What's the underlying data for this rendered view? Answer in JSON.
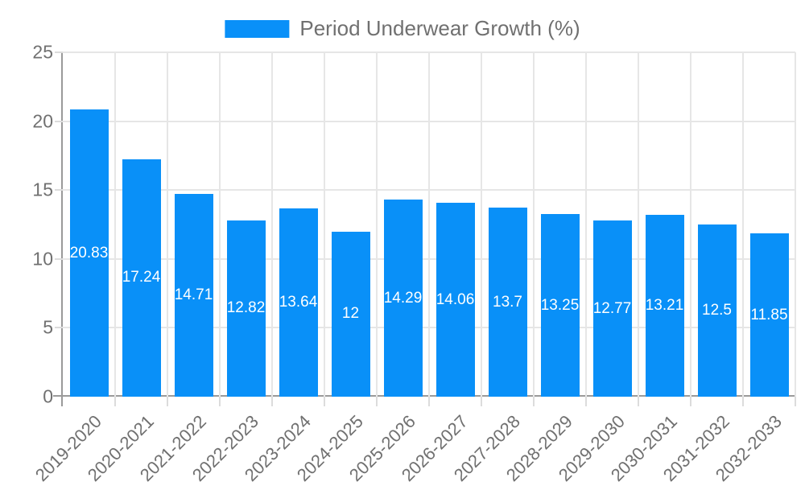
{
  "chart_data": {
    "type": "bar",
    "title": "",
    "legend_label": "Period Underwear Growth (%)",
    "legend_position": "top",
    "categories": [
      "2019-2020",
      "2020-2021",
      "2021-2022",
      "2022-2023",
      "2023-2024",
      "2024-2025",
      "2025-2026",
      "2026-2027",
      "2027-2028",
      "2028-2029",
      "2029-2030",
      "2030-2031",
      "2031-2032",
      "2032-2033"
    ],
    "values": [
      20.83,
      17.24,
      14.71,
      12.82,
      13.64,
      12,
      14.29,
      14.06,
      13.7,
      13.25,
      12.77,
      13.21,
      12.5,
      11.85
    ],
    "value_labels": [
      "20.83",
      "17.24",
      "14.71",
      "12.82",
      "13.64",
      "12",
      "14.29",
      "14.06",
      "13.7",
      "13.25",
      "12.77",
      "13.21",
      "12.5",
      "11.85"
    ],
    "xlabel": "",
    "ylabel": "",
    "ylim": [
      0,
      25
    ],
    "yticks": [
      0,
      5,
      10,
      15,
      20,
      25
    ],
    "grid": "on",
    "colors": {
      "bar": "#0990f8",
      "value_label_text": "#ffffff",
      "axis_text": "#707070",
      "legend_text": "#707070",
      "gridline": "#e6e6e6",
      "axis_line": "#9a9a9a",
      "background": "#ffffff"
    }
  }
}
